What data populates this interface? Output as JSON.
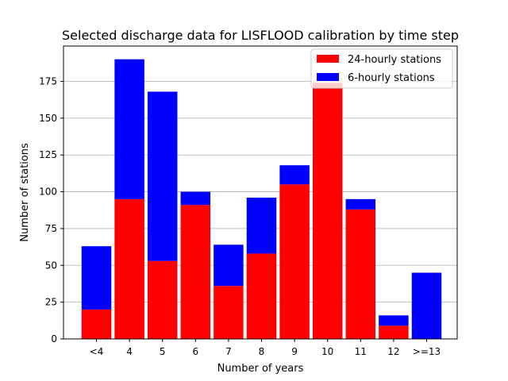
{
  "chart_data": {
    "type": "bar",
    "stacked": true,
    "title": "Selected discharge data for LISFLOOD calibration by time step",
    "xlabel": "Number of years",
    "ylabel": "Number of stations",
    "categories": [
      "<4",
      "4",
      "5",
      "6",
      "7",
      "8",
      "9",
      "10",
      "11",
      "12",
      ">=13"
    ],
    "series": [
      {
        "name": "24-hourly stations",
        "color": "#ff0000",
        "values": [
          20,
          95,
          53,
          91,
          36,
          58,
          105,
          174,
          88,
          9,
          0
        ]
      },
      {
        "name": "6-hourly stations",
        "color": "#0000ff",
        "values": [
          43,
          95,
          115,
          9,
          28,
          38,
          13,
          0,
          7,
          7,
          45
        ]
      }
    ],
    "ylim": [
      0,
      199
    ],
    "yticks": [
      0,
      25,
      50,
      75,
      100,
      125,
      150,
      175
    ],
    "grid": "y",
    "legend": "top-right"
  }
}
